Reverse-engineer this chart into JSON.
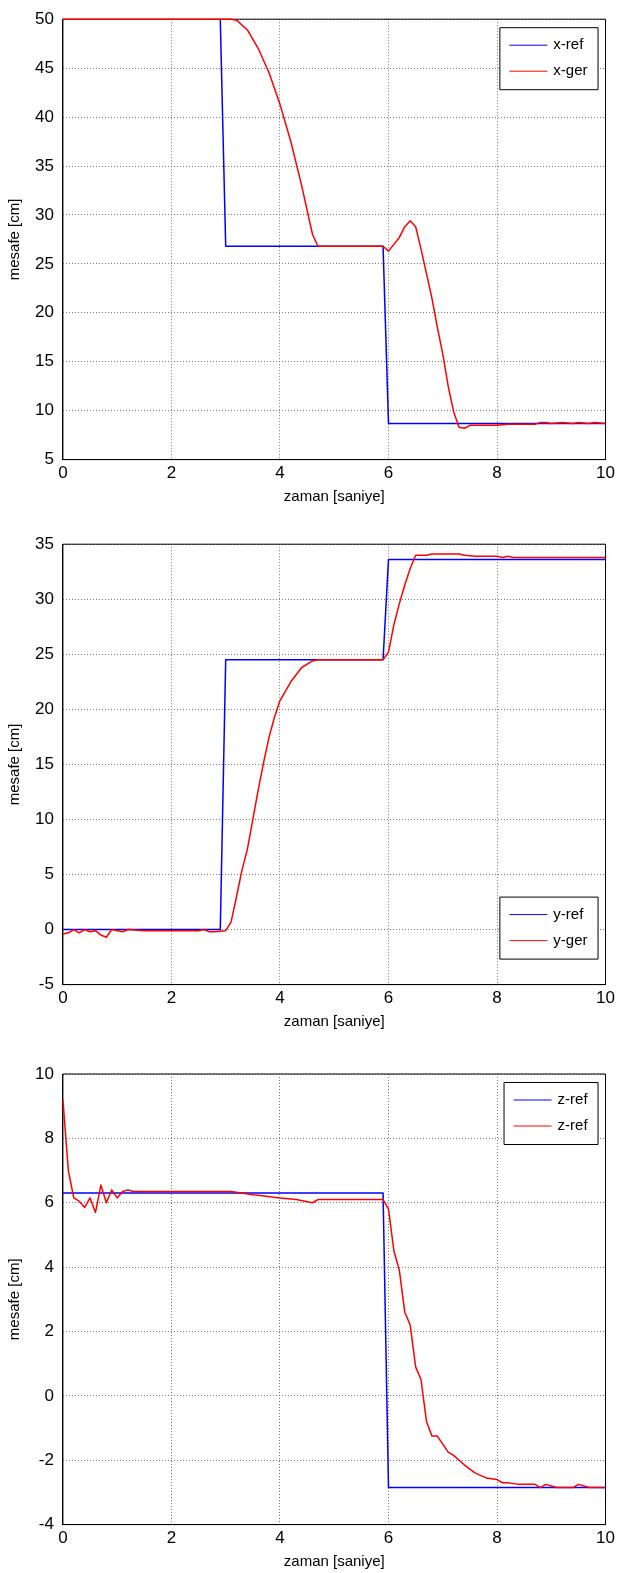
{
  "chart_data": [
    {
      "type": "line",
      "xlabel": "zaman [saniye]",
      "ylabel": "mesafe [cm]",
      "xlim": [
        0,
        10
      ],
      "xticks": [
        0,
        2,
        4,
        6,
        8,
        10
      ],
      "ylim": [
        5,
        50
      ],
      "yticks": [
        5,
        10,
        15,
        20,
        25,
        30,
        35,
        40,
        45,
        50
      ],
      "grid": true,
      "legend": "top right",
      "marker": "none",
      "series": [
        {
          "name": "x-ref",
          "color": "#0000ff",
          "x": [
            2.9,
            3.0,
            5.9,
            6.0,
            10
          ],
          "values": [
            50,
            26.8,
            26.8,
            8.7,
            8.7
          ]
        },
        {
          "name": "x-ger",
          "color": "#ff0000",
          "x": [
            0,
            3.1,
            3.2,
            3.4,
            3.6,
            3.8,
            4.0,
            4.2,
            4.4,
            4.5,
            4.6,
            4.7,
            5.9,
            6.0,
            6.2,
            6.3,
            6.4,
            6.5,
            6.6,
            6.7,
            6.8,
            6.9,
            7.0,
            7.1,
            7.2,
            7.3,
            7.4,
            7.5,
            8.0,
            8.2,
            8.7,
            8.8,
            8.9,
            9.0,
            9.2,
            9.4,
            9.5,
            9.7,
            9.8,
            10
          ],
          "values": [
            50,
            50,
            49.9,
            48.9,
            47,
            44.5,
            41.3,
            37.5,
            33,
            30.5,
            28,
            26.8,
            26.8,
            26.3,
            27.7,
            28.8,
            29.4,
            28.8,
            26.5,
            24,
            21.5,
            18.5,
            15.8,
            12.5,
            9.9,
            8.3,
            8.2,
            8.5,
            8.5,
            8.6,
            8.6,
            8.8,
            8.8,
            8.7,
            8.8,
            8.7,
            8.8,
            8.7,
            8.8,
            8.7
          ]
        }
      ]
    },
    {
      "type": "line",
      "xlabel": "zaman [saniye]",
      "ylabel": "mesafe [cm]",
      "xlim": [
        0,
        10
      ],
      "xticks": [
        0,
        2,
        4,
        6,
        8,
        10
      ],
      "ylim": [
        -5,
        35
      ],
      "yticks": [
        -5,
        0,
        5,
        10,
        15,
        20,
        25,
        30,
        35
      ],
      "grid": true,
      "legend": "bottom right",
      "marker": "none",
      "series": [
        {
          "name": "y-ref",
          "color": "#0000ff",
          "x": [
            0,
            2.9,
            3.0,
            5.9,
            6.0,
            10
          ],
          "values": [
            0,
            0,
            24.5,
            24.5,
            33.6,
            33.6
          ]
        },
        {
          "name": "y-ger",
          "color": "#ff0000",
          "x": [
            0,
            0.1,
            0.2,
            0.3,
            0.4,
            0.5,
            0.6,
            0.7,
            0.8,
            0.9,
            1.1,
            1.2,
            1.5,
            2.0,
            2.5,
            2.6,
            2.7,
            2.8,
            3.0,
            3.1,
            3.2,
            3.3,
            3.4,
            3.5,
            3.6,
            3.7,
            3.8,
            3.9,
            4.0,
            4.2,
            4.4,
            4.6,
            4.7,
            5.9,
            6.0,
            6.1,
            6.2,
            6.3,
            6.4,
            6.5,
            6.7,
            6.8,
            7.3,
            7.4,
            7.6,
            8.0,
            8.1,
            8.2,
            8.3,
            10
          ],
          "values": [
            -0.4,
            -0.3,
            0,
            -0.3,
            0,
            -0.2,
            -0.1,
            -0.5,
            -0.7,
            0,
            -0.2,
            0,
            -0.1,
            -0.1,
            -0.1,
            0,
            -0.2,
            -0.2,
            -0.1,
            0.7,
            3,
            5.4,
            7.3,
            10,
            12.7,
            15.2,
            17.5,
            19.3,
            20.8,
            22.5,
            23.8,
            24.4,
            24.5,
            24.5,
            25.2,
            27.7,
            29.6,
            31.3,
            32.8,
            34.0,
            34.0,
            34.1,
            34.1,
            34.0,
            33.9,
            33.9,
            33.8,
            33.9,
            33.8,
            33.8
          ]
        }
      ]
    },
    {
      "type": "line",
      "xlabel": "zaman [saniye]",
      "ylabel": "mesafe [cm]",
      "xlim": [
        0,
        10
      ],
      "xticks": [
        0,
        2,
        4,
        6,
        8,
        10
      ],
      "ylim": [
        -4,
        10
      ],
      "yticks": [
        -4,
        -2,
        0,
        2,
        4,
        6,
        8,
        10
      ],
      "grid": true,
      "legend": "top right",
      "marker": "none",
      "series": [
        {
          "name": "z-ref",
          "color": "#0000ff",
          "x": [
            0,
            5.9,
            6.0,
            10
          ],
          "values": [
            6.3,
            6.3,
            -2.85,
            -2.85
          ]
        },
        {
          "name": "z-ref",
          "color": "#ff0000",
          "x": [
            0,
            0.1,
            0.2,
            0.3,
            0.4,
            0.5,
            0.6,
            0.7,
            0.8,
            0.9,
            1.0,
            1.1,
            1.2,
            1.3,
            3.1,
            3.5,
            4.0,
            4.3,
            4.6,
            4.7,
            5.9,
            6.0,
            6.1,
            6.2,
            6.3,
            6.4,
            6.5,
            6.6,
            6.7,
            6.8,
            6.9,
            7.0,
            7.1,
            7.2,
            7.4,
            7.6,
            7.8,
            8.0,
            8.1,
            8.2,
            8.4,
            8.7,
            8.8,
            8.9,
            9.0,
            9.1,
            9.4,
            9.5,
            9.7,
            10
          ],
          "values": [
            9.2,
            7,
            6.15,
            6.05,
            5.85,
            6.15,
            5.7,
            6.55,
            6.0,
            6.4,
            6.15,
            6.35,
            6.4,
            6.35,
            6.35,
            6.25,
            6.15,
            6.1,
            6.0,
            6.1,
            6.1,
            5.8,
            4.5,
            3.9,
            2.6,
            2.2,
            0.9,
            0.5,
            -0.8,
            -1.25,
            -1.25,
            -1.5,
            -1.75,
            -1.85,
            -2.15,
            -2.4,
            -2.55,
            -2.6,
            -2.7,
            -2.7,
            -2.75,
            -2.75,
            -2.85,
            -2.75,
            -2.8,
            -2.85,
            -2.85,
            -2.75,
            -2.85,
            -2.85
          ]
        }
      ]
    }
  ]
}
